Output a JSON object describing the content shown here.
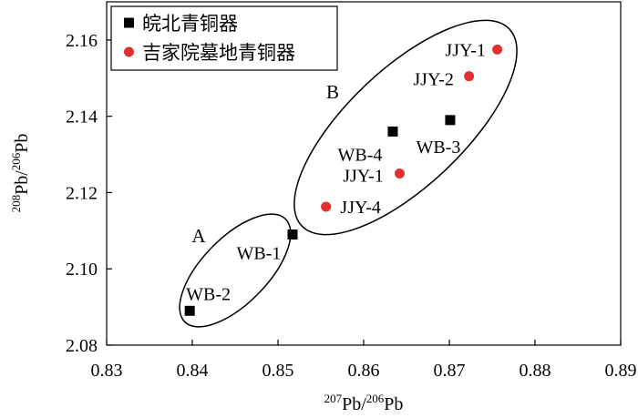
{
  "chart_data": {
    "type": "scatter",
    "xlabel": {
      "sup1": "207",
      "main1": "Pb/",
      "sup2": "206",
      "main2": "Pb"
    },
    "ylabel": {
      "sup1": "208",
      "main1": "Pb/",
      "sup2": "206",
      "main2": "Pb"
    },
    "xlim": [
      0.83,
      0.89
    ],
    "ylim": [
      2.08,
      2.17
    ],
    "xticks": [
      "0.83",
      "0.84",
      "0.85",
      "0.86",
      "0.87",
      "0.88",
      "0.89"
    ],
    "yticks": [
      "2.08",
      "2.10",
      "2.12",
      "2.14",
      "2.16"
    ],
    "legend_placement": "top-left",
    "series": [
      {
        "name": "皖北青铜器",
        "marker": "square",
        "color": "#000000",
        "points": [
          {
            "label": "WB-1",
            "x": 0.8517,
            "y": 2.109
          },
          {
            "label": "WB-2",
            "x": 0.8397,
            "y": 2.089
          },
          {
            "label": "WB-3",
            "x": 0.8701,
            "y": 2.139
          },
          {
            "label": "WB-4",
            "x": 0.8634,
            "y": 2.136
          }
        ]
      },
      {
        "name": "吉家院墓地青铜器",
        "marker": "circle",
        "color": "#e03131",
        "points": [
          {
            "label": "JJY-1",
            "x": 0.8756,
            "y": 2.1575
          },
          {
            "label": "JJY-2",
            "x": 0.8723,
            "y": 2.1505
          },
          {
            "label": "JJY-1",
            "x": 0.8642,
            "y": 2.125
          },
          {
            "label": "JJY-4",
            "x": 0.8556,
            "y": 2.1163
          }
        ]
      }
    ],
    "groups": [
      {
        "label": "A",
        "members": [
          "WB-1",
          "WB-2"
        ]
      },
      {
        "label": "B",
        "members": [
          "WB-3",
          "WB-4",
          "JJY-1",
          "JJY-2",
          "JJY-4"
        ]
      }
    ]
  }
}
